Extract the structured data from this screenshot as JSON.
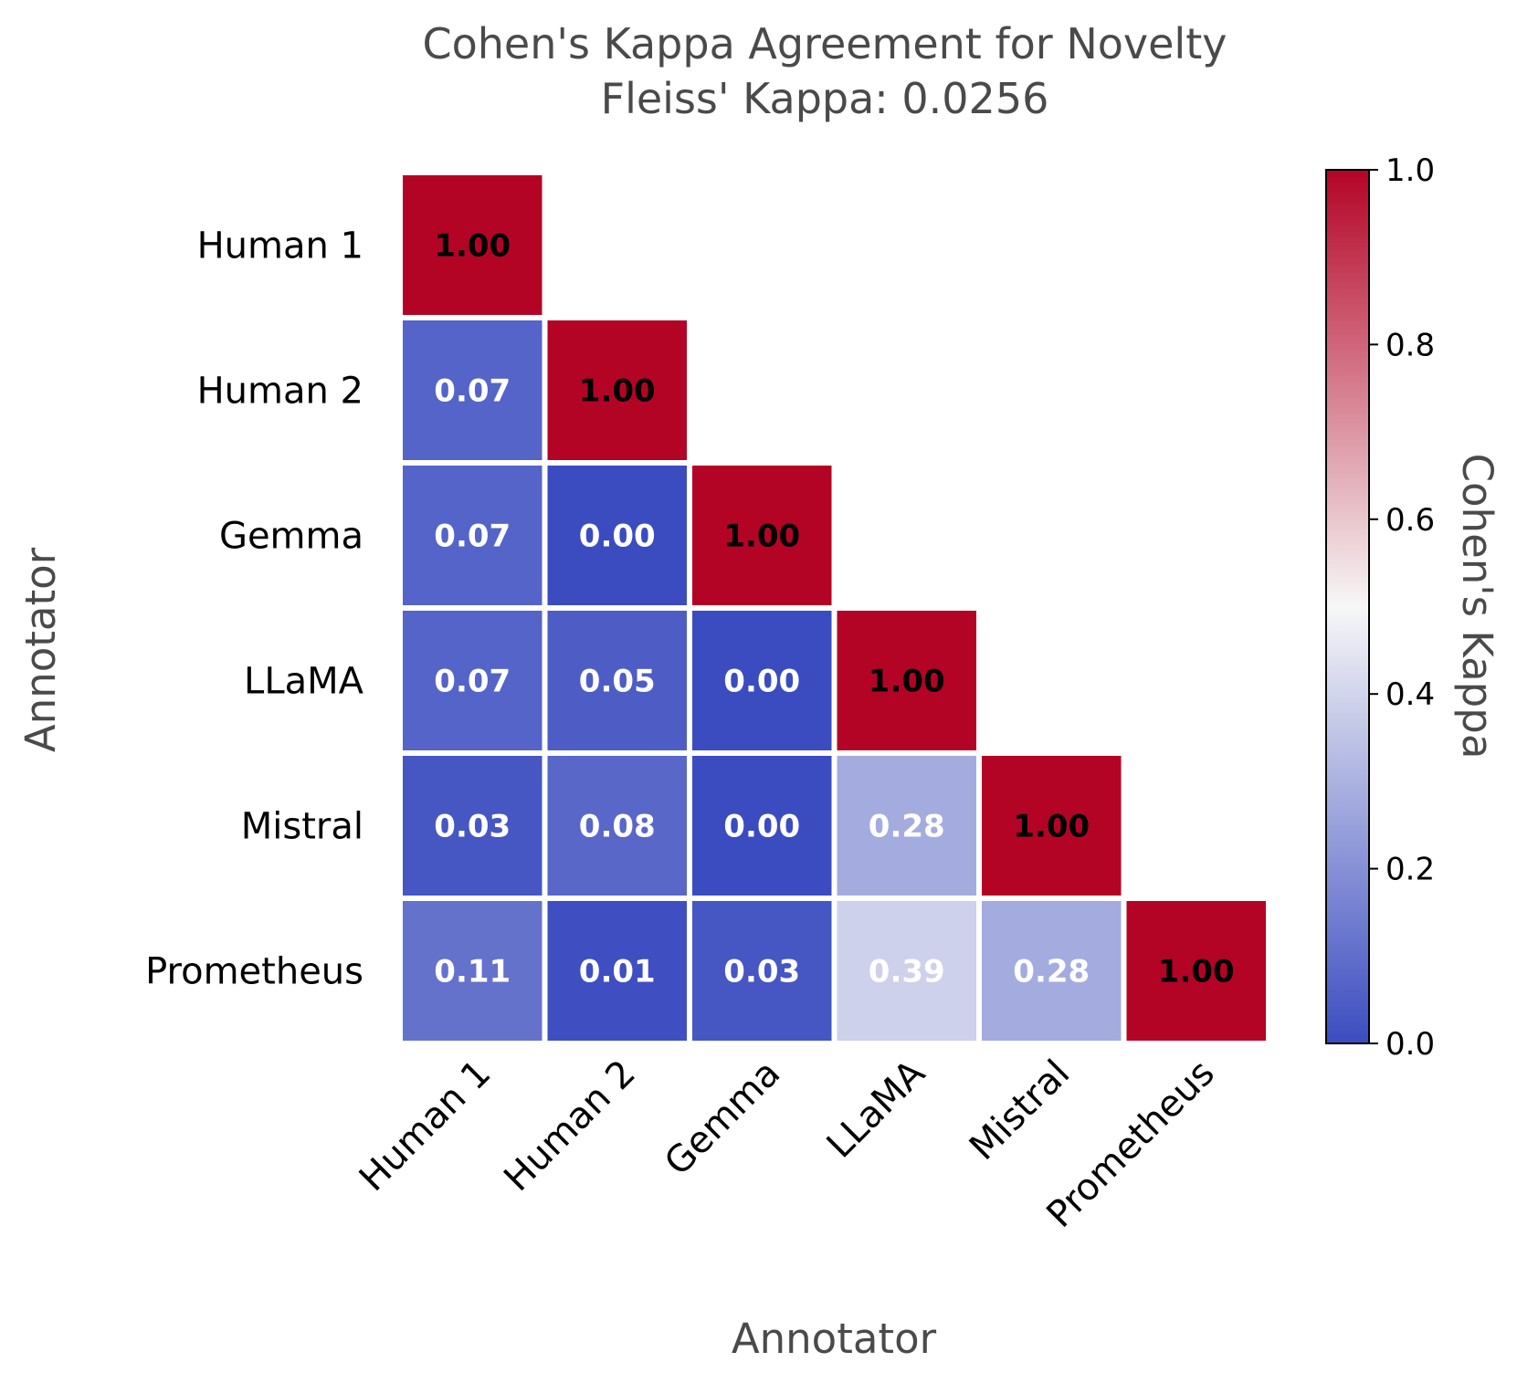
{
  "chart_data": {
    "type": "heatmap",
    "title": "Cohen's Kappa Agreement for Novelty",
    "subtitle": "Fleiss' Kappa: 0.0256",
    "xlabel": "Annotator",
    "ylabel": "Annotator",
    "categories": [
      "Human 1",
      "Human 2",
      "Gemma",
      "LLaMA",
      "Mistral",
      "Prometheus"
    ],
    "mask": "upper-triangle",
    "values": [
      [
        1.0,
        null,
        null,
        null,
        null,
        null
      ],
      [
        0.07,
        1.0,
        null,
        null,
        null,
        null
      ],
      [
        0.07,
        0.0,
        1.0,
        null,
        null,
        null
      ],
      [
        0.07,
        0.05,
        0.0,
        1.0,
        null,
        null
      ],
      [
        0.03,
        0.08,
        0.0,
        0.28,
        1.0,
        null
      ],
      [
        0.11,
        0.01,
        0.03,
        0.39,
        0.28,
        1.0
      ]
    ],
    "value_labels": [
      [
        "1.00",
        null,
        null,
        null,
        null,
        null
      ],
      [
        "0.07",
        "1.00",
        null,
        null,
        null,
        null
      ],
      [
        "0.07",
        "0.00",
        "1.00",
        null,
        null,
        null
      ],
      [
        "0.07",
        "0.05",
        "0.00",
        "1.00",
        null,
        null
      ],
      [
        "0.03",
        "0.08",
        "0.00",
        "0.28",
        "1.00",
        null
      ],
      [
        "0.11",
        "0.01",
        "0.03",
        "0.39",
        "0.28",
        "1.00"
      ]
    ],
    "colormap": "coolwarm",
    "colorbar": {
      "label": "Cohen's Kappa",
      "range": [
        0,
        1
      ],
      "ticks": [
        "0.0",
        "0.2",
        "0.4",
        "0.6",
        "0.8",
        "1.0"
      ]
    }
  },
  "colors": {
    "cmap_low": "#3b4cc0",
    "cmap_mid": "#f7f7f7",
    "cmap_high": "#b40426",
    "cell_border": "#ffffff",
    "text_dark": "#000000",
    "text_light": "#ffffff"
  }
}
